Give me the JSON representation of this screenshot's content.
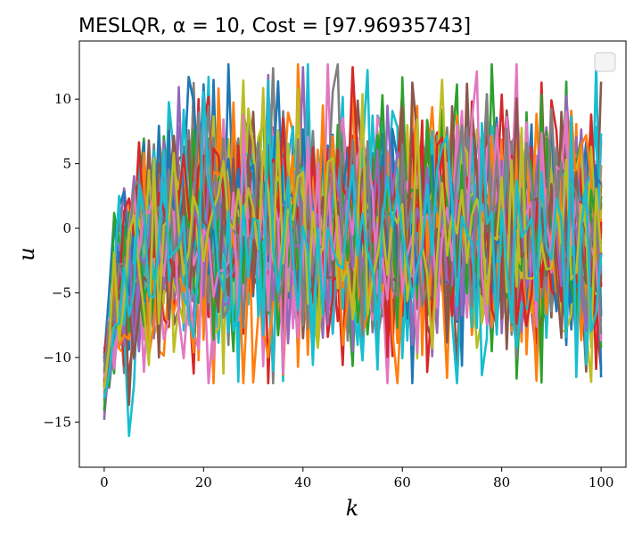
{
  "chart_data": {
    "type": "line",
    "title": "MESLQR, α = 10,  Cost = [97.96935743]",
    "xlabel": "k",
    "ylabel": "u",
    "xlim": [
      -5,
      105
    ],
    "ylim": [
      -18.5,
      14.5
    ],
    "x_ticks": [
      0,
      20,
      40,
      60,
      80,
      100
    ],
    "x_tick_labels": [
      "0",
      "20",
      "40",
      "60",
      "80",
      "100"
    ],
    "y_ticks": [
      10,
      5,
      0,
      -5,
      -10,
      -15
    ],
    "y_tick_labels": [
      "10",
      "5",
      "0",
      "−5",
      "−10",
      "−15"
    ],
    "grid": false,
    "legend": {
      "placement": "top-right",
      "entries": []
    },
    "series_count": 50,
    "samples_per_series": 101,
    "x_range": [
      0,
      100
    ],
    "palette": [
      "#1f77b4",
      "#ff7f0e",
      "#2ca02c",
      "#d62728",
      "#9467bd",
      "#8c564b",
      "#e377c2",
      "#7f7f7f",
      "#bcbd22",
      "#17becf"
    ],
    "envelope": {
      "early_min": -17,
      "early_max": 4,
      "steady_min": -12,
      "steady_max": 12.7
    }
  }
}
